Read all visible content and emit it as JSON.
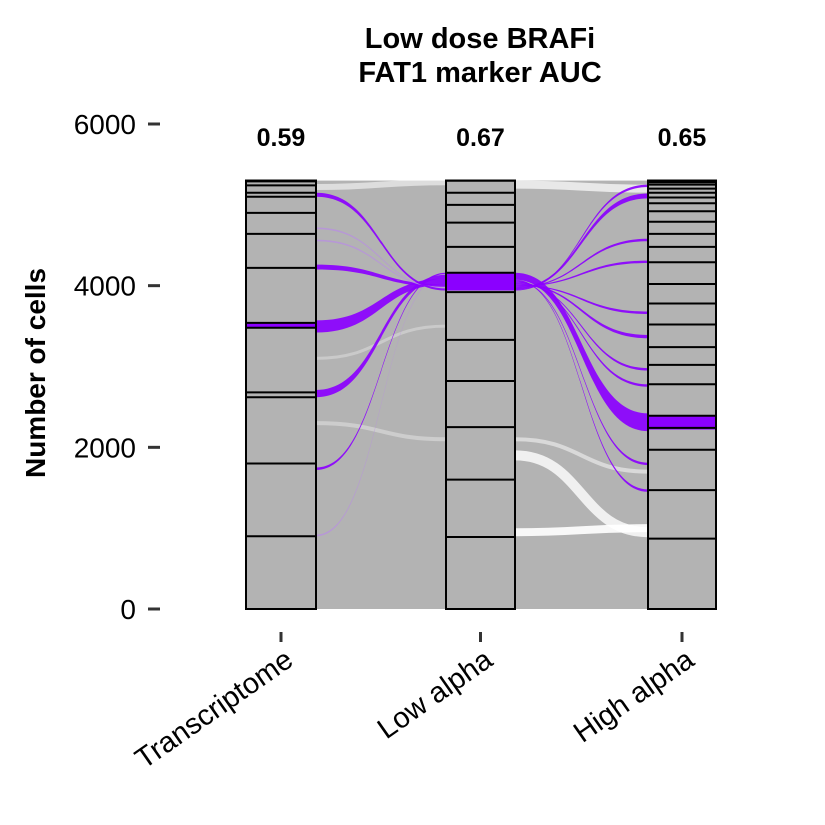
{
  "chart_data": {
    "type": "alluvial",
    "title": [
      "Low dose BRAFi",
      "FAT1 marker AUC"
    ],
    "xlabel": "",
    "ylabel": "Number of cells",
    "ylim": [
      0,
      6000
    ],
    "yticks": [
      0,
      2000,
      4000,
      6000
    ],
    "total_cells": 5300,
    "axes": [
      {
        "name": "Transcriptome",
        "auc": "0.59",
        "boundaries": [
          900,
          1800,
          2620,
          2680,
          3480,
          3540,
          4220,
          4640,
          4900,
          5100,
          5150,
          5240,
          5290
        ],
        "highlight_range": [
          3480,
          3540
        ]
      },
      {
        "name": "Low alpha",
        "auc": "0.67",
        "boundaries": [
          890,
          1600,
          2250,
          2820,
          3330,
          3920,
          4160,
          4480,
          4780,
          5000,
          5150,
          5300
        ],
        "highlight_range": [
          3940,
          4160
        ]
      },
      {
        "name": "High alpha",
        "auc": "0.65",
        "boundaries": [
          870,
          1470,
          1970,
          2240,
          2390,
          2780,
          3020,
          3240,
          3520,
          3780,
          4020,
          4290,
          4480,
          4640,
          4790,
          4920,
          5020,
          5090,
          5150,
          5200,
          5250,
          5280,
          5300
        ],
        "highlight_range": [
          2220,
          2390
        ]
      }
    ],
    "highlight_flows_left": [
      {
        "y": 1720,
        "width": 30
      },
      {
        "y": 900,
        "width": 20
      },
      {
        "y": 2620,
        "width": 90
      },
      {
        "y": 3420,
        "width": 150
      },
      {
        "y": 4200,
        "width": 60
      },
      {
        "y": 4550,
        "width": 20
      },
      {
        "y": 4700,
        "width": 20
      },
      {
        "y": 5100,
        "width": 50
      }
    ],
    "highlight_flows_right": [
      {
        "y": 2200,
        "width": 220
      },
      {
        "y": 1450,
        "width": 30
      },
      {
        "y": 1780,
        "width": 30
      },
      {
        "y": 2750,
        "width": 30
      },
      {
        "y": 2950,
        "width": 30
      },
      {
        "y": 3350,
        "width": 40
      },
      {
        "y": 3650,
        "width": 30
      },
      {
        "y": 4280,
        "width": 30
      },
      {
        "y": 4550,
        "width": 30
      },
      {
        "y": 5080,
        "width": 60
      },
      {
        "y": 5220,
        "width": 30
      }
    ],
    "colors": {
      "highlight": "#8b00ff",
      "highlight_faint": "#b890e0",
      "flow_gray": "#b3b3b3",
      "stratum_fill": "#b3b3b3",
      "stratum_border": "#000000"
    }
  }
}
